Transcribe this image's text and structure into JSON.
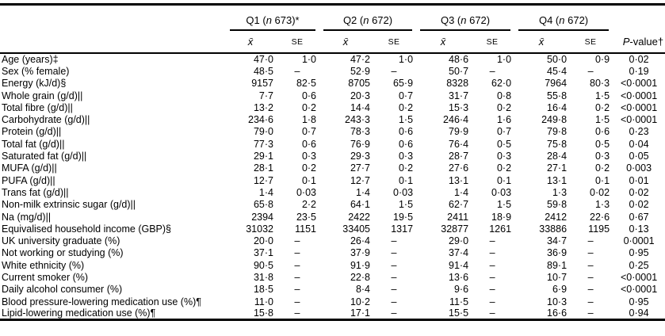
{
  "page": {
    "background_color": "#ffffff",
    "text_color": "#000000",
    "rule_color": "#000000"
  },
  "table": {
    "col_groups": [
      {
        "pre": "Q1 (",
        "n": "n",
        "post": " 673)*"
      },
      {
        "pre": "Q2 (",
        "n": "n",
        "post": " 672)"
      },
      {
        "pre": "Q3 (",
        "n": "n",
        "post": " 672)"
      },
      {
        "pre": "Q4 (",
        "n": "n",
        "post": " 672)"
      }
    ],
    "sub_header": {
      "mean": "x̄",
      "se": "SE"
    },
    "p_header": {
      "italic": "P",
      "rest": "-value†"
    },
    "rows": [
      {
        "label": "Age (years)‡",
        "values": [
          "47·0",
          "1·0",
          "47·2",
          "1·0",
          "48·6",
          "1·0",
          "50·0",
          "0·9"
        ],
        "p": "0·02"
      },
      {
        "label": "Sex (% female)",
        "values": [
          "48·5",
          "–",
          "52·9",
          "–",
          "50·7",
          "–",
          "45·4",
          "–"
        ],
        "p": "0·19"
      },
      {
        "label": "Energy (kJ/d)§",
        "values": [
          "9157",
          "82·5",
          "8705",
          "65·9",
          "8328",
          "62·0",
          "7964",
          "80·3"
        ],
        "p": "<0·0001"
      },
      {
        "label": "Whole grain (g/d)||",
        "values": [
          "7·7",
          "0·6",
          "20·3",
          "0·7",
          "31·7",
          "0·8",
          "55·8",
          "1·5"
        ],
        "p": "<0·0001"
      },
      {
        "label": "Total fibre (g/d)||",
        "values": [
          "13·2",
          "0·2",
          "14·4",
          "0·2",
          "15·3",
          "0·2",
          "16·4",
          "0·2"
        ],
        "p": "<0·0001"
      },
      {
        "label": "Carbohydrate (g/d)||",
        "values": [
          "234·6",
          "1·8",
          "243·3",
          "1·5",
          "246·4",
          "1·6",
          "249·8",
          "1·5"
        ],
        "p": "<0·0001"
      },
      {
        "label": "Protein (g/d)||",
        "values": [
          "79·0",
          "0·7",
          "78·3",
          "0·6",
          "79·9",
          "0·7",
          "79·8",
          "0·6"
        ],
        "p": "0·23"
      },
      {
        "label": "Total fat (g/d)||",
        "values": [
          "77·3",
          "0·6",
          "76·9",
          "0·6",
          "76·4",
          "0·5",
          "75·8",
          "0·5"
        ],
        "p": "0·04"
      },
      {
        "label": "Saturated fat (g/d)||",
        "values": [
          "29·1",
          "0·3",
          "29·3",
          "0·3",
          "28·7",
          "0·3",
          "28·4",
          "0·3"
        ],
        "p": "0·05"
      },
      {
        "label": "MUFA (g/d)||",
        "values": [
          "28·1",
          "0·2",
          "27·7",
          "0·2",
          "27·6",
          "0·2",
          "27·1",
          "0·2"
        ],
        "p": "0·003"
      },
      {
        "label": "PUFA (g/d)||",
        "values": [
          "12·7",
          "0·1",
          "12·7",
          "0·1",
          "13·1",
          "0·1",
          "13·1",
          "0·1"
        ],
        "p": "0·01"
      },
      {
        "label": "Trans fat (g/d)||",
        "values": [
          "1·4",
          "0·03",
          "1·4",
          "0·03",
          "1·4",
          "0·03",
          "1·3",
          "0·02"
        ],
        "p": "0·02"
      },
      {
        "label": "Non-milk extrinsic sugar (g/d)||",
        "values": [
          "65·8",
          "2·2",
          "64·1",
          "1·5",
          "62·7",
          "1·5",
          "59·8",
          "1·3"
        ],
        "p": "0·02"
      },
      {
        "label": "Na (mg/d)||",
        "values": [
          "2394",
          "23·5",
          "2422",
          "19·5",
          "2411",
          "18·9",
          "2412",
          "22·6"
        ],
        "p": "0·67"
      },
      {
        "label": "Equivalised household income (GBP)§",
        "values": [
          "31032",
          "1151",
          "33405",
          "1317",
          "32877",
          "1261",
          "33886",
          "1195"
        ],
        "p": "0·13"
      },
      {
        "label": "UK university graduate (%)",
        "values": [
          "20·0",
          "–",
          "26·4",
          "–",
          "29·0",
          "–",
          "34·7",
          "–"
        ],
        "p": "0·0001"
      },
      {
        "label": "Not working or studying (%)",
        "values": [
          "37·1",
          "–",
          "37·9",
          "–",
          "37·4",
          "–",
          "36·9",
          "–"
        ],
        "p": "0·95"
      },
      {
        "label": "White ethnicity (%)",
        "values": [
          "90·5",
          "–",
          "91·9",
          "–",
          "91·4",
          "–",
          "89·1",
          "–"
        ],
        "p": "0·25"
      },
      {
        "label": "Current smoker (%)",
        "values": [
          "31·8",
          "–",
          "22·8",
          "–",
          "13·6",
          "–",
          "10·7",
          "–"
        ],
        "p": "<0·0001"
      },
      {
        "label": "Daily alcohol consumer (%)",
        "values": [
          "18·5",
          "–",
          "8·4",
          "–",
          "9·6",
          "–",
          "6·9",
          "–"
        ],
        "p": "<0·0001"
      },
      {
        "label": "Blood pressure-lowering medication use (%)¶",
        "values": [
          "11·0",
          "–",
          "10·2",
          "–",
          "11·5",
          "–",
          "10·3",
          "–"
        ],
        "p": "0·95"
      },
      {
        "label": "Lipid-lowering medication use (%)¶",
        "values": [
          "15·8",
          "–",
          "17·1",
          "–",
          "15·5",
          "–",
          "16·6",
          "–"
        ],
        "p": "0·94"
      }
    ]
  }
}
